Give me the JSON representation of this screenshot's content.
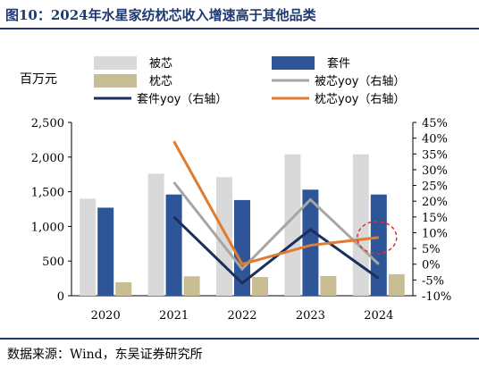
{
  "title": "图10：2024年水星家纺枕芯收入增速高于其他品类",
  "unit_label": "百万元",
  "source": "数据来源：Wind，东吴证券研究所",
  "colors": {
    "bei_xin": "#d9d9d9",
    "tao_jian": "#2e5597",
    "zhen_xin": "#c9bd94",
    "bei_xin_yoy": "#a6a6a6",
    "tao_jian_yoy": "#1b2f5e",
    "zhen_xin_yoy": "#e07b30",
    "highlight": "#e0302a"
  },
  "chart_data": {
    "type": "bar",
    "categories": [
      "2020",
      "2021",
      "2022",
      "2023",
      "2024"
    ],
    "series": [
      {
        "name": "被芯",
        "kind": "bar",
        "axis": "left",
        "values": [
          1400,
          1760,
          1710,
          2040,
          2040
        ]
      },
      {
        "name": "套件",
        "kind": "bar",
        "axis": "left",
        "values": [
          1270,
          1460,
          1380,
          1530,
          1460
        ]
      },
      {
        "name": "枕芯",
        "kind": "bar",
        "axis": "left",
        "values": [
          195,
          280,
          270,
          285,
          310
        ]
      },
      {
        "name": "被芯yoy（右轴）",
        "kind": "line",
        "axis": "right",
        "values": [
          null,
          26,
          -1.5,
          20.5,
          0
        ]
      },
      {
        "name": "套件yoy（右轴）",
        "kind": "line",
        "axis": "right",
        "values": [
          null,
          15,
          -6,
          11,
          -4.5
        ]
      },
      {
        "name": "枕芯yoy（右轴）",
        "kind": "line",
        "axis": "right",
        "values": [
          null,
          39,
          0,
          6,
          8.5
        ]
      }
    ],
    "y_left": {
      "min": 0,
      "max": 2500,
      "ticks": [
        "0",
        "500",
        "1,000",
        "1,500",
        "2,000",
        "2,500"
      ]
    },
    "y_right": {
      "min": -10,
      "max": 45,
      "ticks": [
        "-10%",
        "-5%",
        "0%",
        "5%",
        "10%",
        "15%",
        "20%",
        "25%",
        "30%",
        "35%",
        "40%",
        "45%"
      ]
    },
    "legend_position": "top",
    "grid": false,
    "annotation": "dashed red circle around 2024 枕芯yoy point"
  }
}
